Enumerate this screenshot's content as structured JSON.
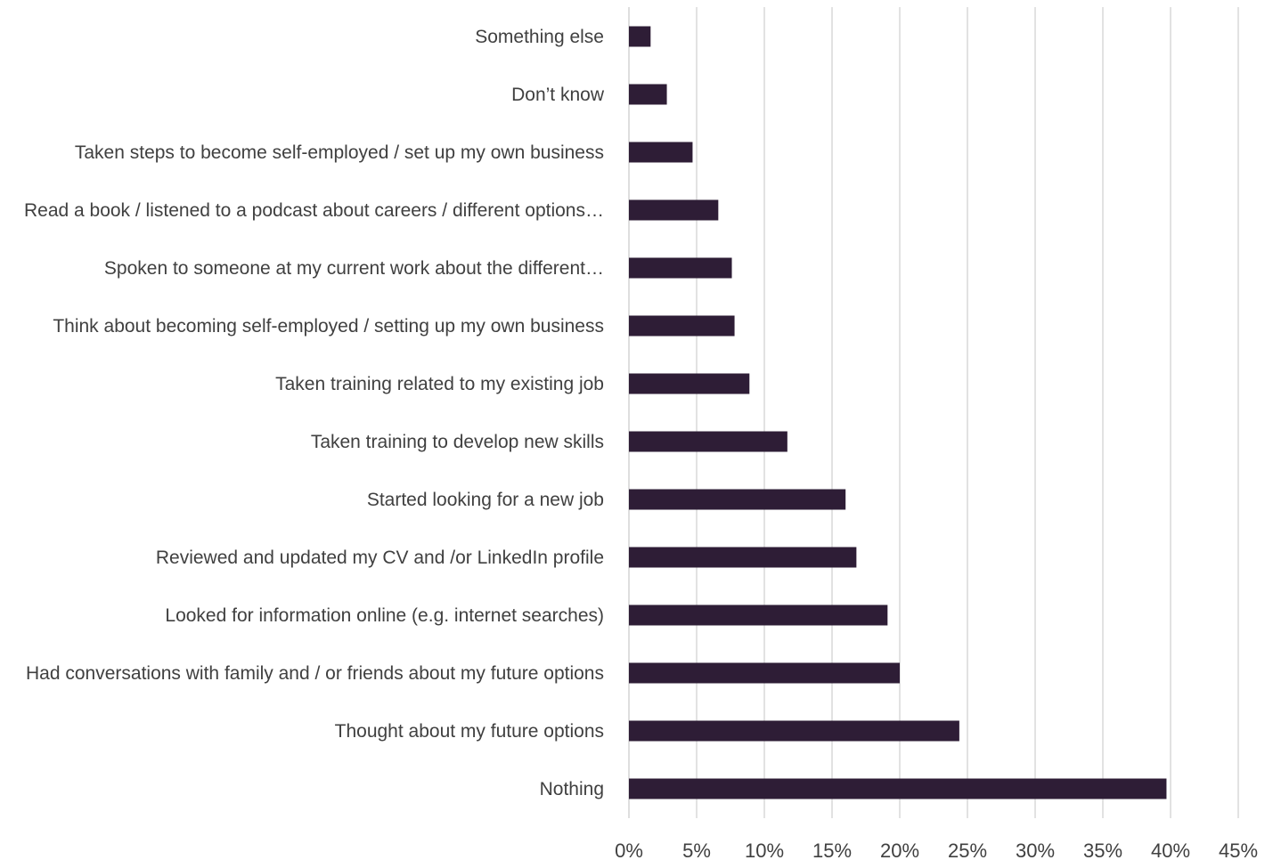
{
  "chart_data": {
    "type": "bar",
    "orientation": "horizontal",
    "categories": [
      "Something else",
      "Don’t know",
      "Taken steps to become self-employed / set up my own business",
      "Read a book / listened to a podcast about careers / different options…",
      "Spoken to someone at my current work about the different…",
      "Think about becoming self-employed / setting up my own business",
      "Taken training related to my existing job",
      "Taken training to develop new skills",
      "Started looking for a new job",
      "Reviewed and updated my CV and /or LinkedIn profile",
      "Looked for information online (e.g. internet searches)",
      "Had conversations with family and / or friends about my future options",
      "Thought about my future options",
      "Nothing"
    ],
    "values": [
      1.6,
      2.8,
      4.7,
      6.6,
      7.6,
      7.8,
      8.9,
      11.7,
      16.0,
      16.8,
      19.1,
      20.0,
      24.4,
      39.7
    ],
    "xlim": [
      0,
      45
    ],
    "xticks": [
      "0%",
      "5%",
      "10%",
      "15%",
      "20%",
      "25%",
      "30%",
      "35%",
      "40%",
      "45%"
    ],
    "grid": "vertical",
    "bar_color": "#2e1d36",
    "grid_color": "#d9d9d9",
    "text_color": "#404040",
    "title": "",
    "xlabel": "",
    "ylabel": ""
  }
}
